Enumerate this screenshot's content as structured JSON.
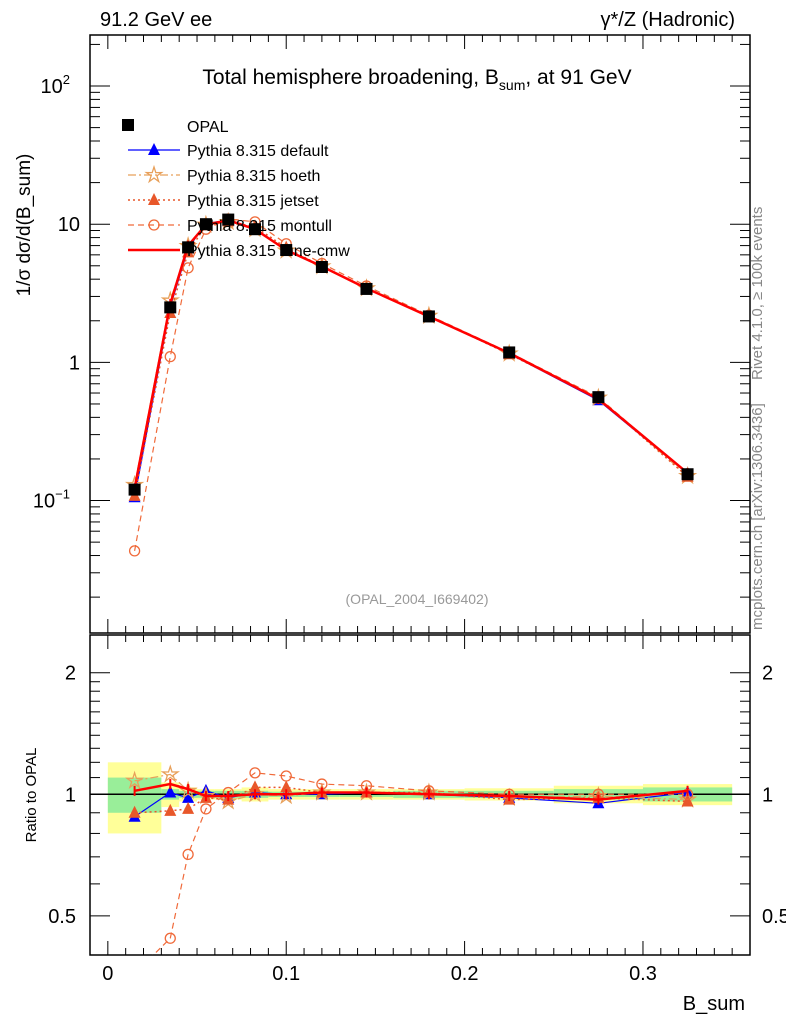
{
  "header": {
    "left": "91.2 GeV ee",
    "right": "γ*/Z (Hadronic)"
  },
  "side": {
    "rivet": "Rivet 4.1.0, ≥ 100k events",
    "mcplots": "mcplots.cern.ch [arXiv:1306.3436]"
  },
  "chart_data": {
    "type": "line",
    "title": "Total hemisphere broadening, B_sum, at 91 GeV",
    "analysis_label": "(OPAL_2004_I669402)",
    "xlabel": "B_sum",
    "ylabel": "1/σ dσ/d(B_sum)",
    "ratio_ylabel": "Ratio to OPAL",
    "xlim": [
      -0.01,
      0.36
    ],
    "ylim": [
      0.011,
      234
    ],
    "yscale": "log",
    "ratio_ylim": [
      0.4,
      2.48
    ],
    "xticks": [
      "0",
      "0.1",
      "0.2",
      "0.3"
    ],
    "yticks": [
      "10^-1",
      "1",
      "10",
      "10^2"
    ],
    "ratio_yticks": [
      "0.5",
      "1",
      "2"
    ],
    "legend_position": "top-left",
    "x": [
      0.015,
      0.035,
      0.045,
      0.055,
      0.0675,
      0.0825,
      0.1,
      0.12,
      0.145,
      0.18,
      0.225,
      0.275,
      0.325
    ],
    "bin_edges": [
      0,
      0.03,
      0.04,
      0.05,
      0.06,
      0.075,
      0.09,
      0.11,
      0.13,
      0.16,
      0.2,
      0.25,
      0.3,
      0.35
    ],
    "data": {
      "name": "OPAL",
      "values": [
        0.12,
        2.5,
        6.8,
        10.0,
        10.8,
        9.2,
        6.5,
        4.9,
        3.4,
        2.15,
        1.18,
        0.56,
        0.155
      ],
      "stat_rel": [
        0.1,
        0.03,
        0.02,
        0.02,
        0.02,
        0.02,
        0.015,
        0.015,
        0.015,
        0.02,
        0.02,
        0.03,
        0.04
      ],
      "tot_rel": [
        0.2,
        0.07,
        0.04,
        0.03,
        0.03,
        0.04,
        0.03,
        0.03,
        0.03,
        0.03,
        0.035,
        0.05,
        0.06
      ]
    },
    "series": [
      {
        "name": "Pythia 8.315 default",
        "color": "#0000ff",
        "ratio": [
          0.88,
          1.01,
          0.98,
          1.02,
          0.98,
          1.01,
          1.0,
          1.0,
          1.01,
          1.0,
          0.98,
          0.95,
          1.01
        ]
      },
      {
        "name": "Pythia 8.315 hoeth",
        "color": "#e8a05a",
        "ratio": [
          1.08,
          1.12,
          1.02,
          0.99,
          0.96,
          1.0,
          0.99,
          1.01,
          1.01,
          1.01,
          0.98,
          0.99,
          0.97
        ]
      },
      {
        "name": "Pythia 8.315 jetset",
        "color": "#e8572a",
        "ratio": [
          0.9,
          0.91,
          0.92,
          0.98,
          0.97,
          1.04,
          1.04,
          1.01,
          1.01,
          1.01,
          0.97,
          0.98,
          0.96
        ]
      },
      {
        "name": "Pythia 8.315 montull",
        "color": "#f06a3a",
        "ratio": [
          0.36,
          0.44,
          0.71,
          0.92,
          1.01,
          1.13,
          1.11,
          1.06,
          1.05,
          1.02,
          1.0,
          1.0,
          1.0
        ]
      },
      {
        "name": "Pythia 8.315 tune-cmw",
        "color": "#ff0000",
        "ratio": [
          1.02,
          1.06,
          1.03,
          0.99,
          0.99,
          1.0,
          1.0,
          1.01,
          1.01,
          1.0,
          0.99,
          0.97,
          1.02
        ]
      }
    ]
  }
}
